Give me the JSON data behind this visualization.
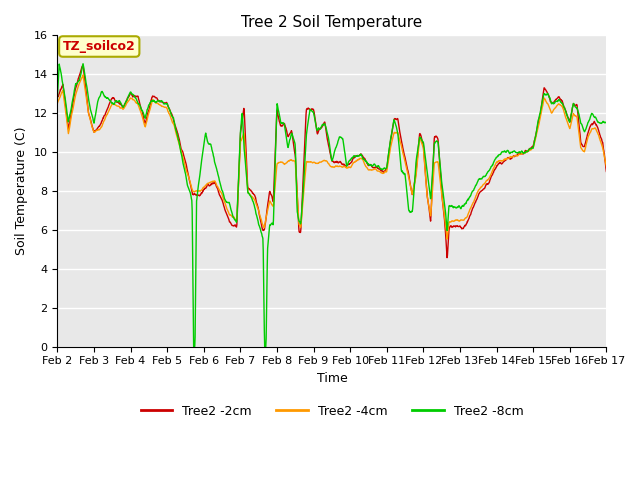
{
  "title": "Tree 2 Soil Temperature",
  "xlabel": "Time",
  "ylabel": "Soil Temperature (C)",
  "ylim": [
    0,
    16
  ],
  "plot_bg_color": "#e8e8e8",
  "fig_bg_color": "#ffffff",
  "legend_labels": [
    "Tree2 -2cm",
    "Tree2 -4cm",
    "Tree2 -8cm"
  ],
  "legend_colors": [
    "#cc0000",
    "#ff9900",
    "#00cc00"
  ],
  "annotation_text": "TZ_soilco2",
  "annotation_bg": "#ffffcc",
  "annotation_border": "#aaaa00",
  "xtick_labels": [
    "Feb 2",
    "Feb 3",
    "Feb 4",
    "Feb 5",
    "Feb 6",
    "Feb 7",
    "Feb 8",
    "Feb 9",
    "Feb 10",
    "Feb 11",
    "Feb 12",
    "Feb 13",
    "Feb 14",
    "Feb 15",
    "Feb 16",
    "Feb 17"
  ],
  "title_fontsize": 11,
  "axis_label_fontsize": 9,
  "tick_fontsize": 8,
  "legend_fontsize": 9,
  "line_width": 1.0,
  "grid_color": "#ffffff",
  "yticks": [
    0,
    2,
    4,
    6,
    8,
    10,
    12,
    14,
    16
  ]
}
